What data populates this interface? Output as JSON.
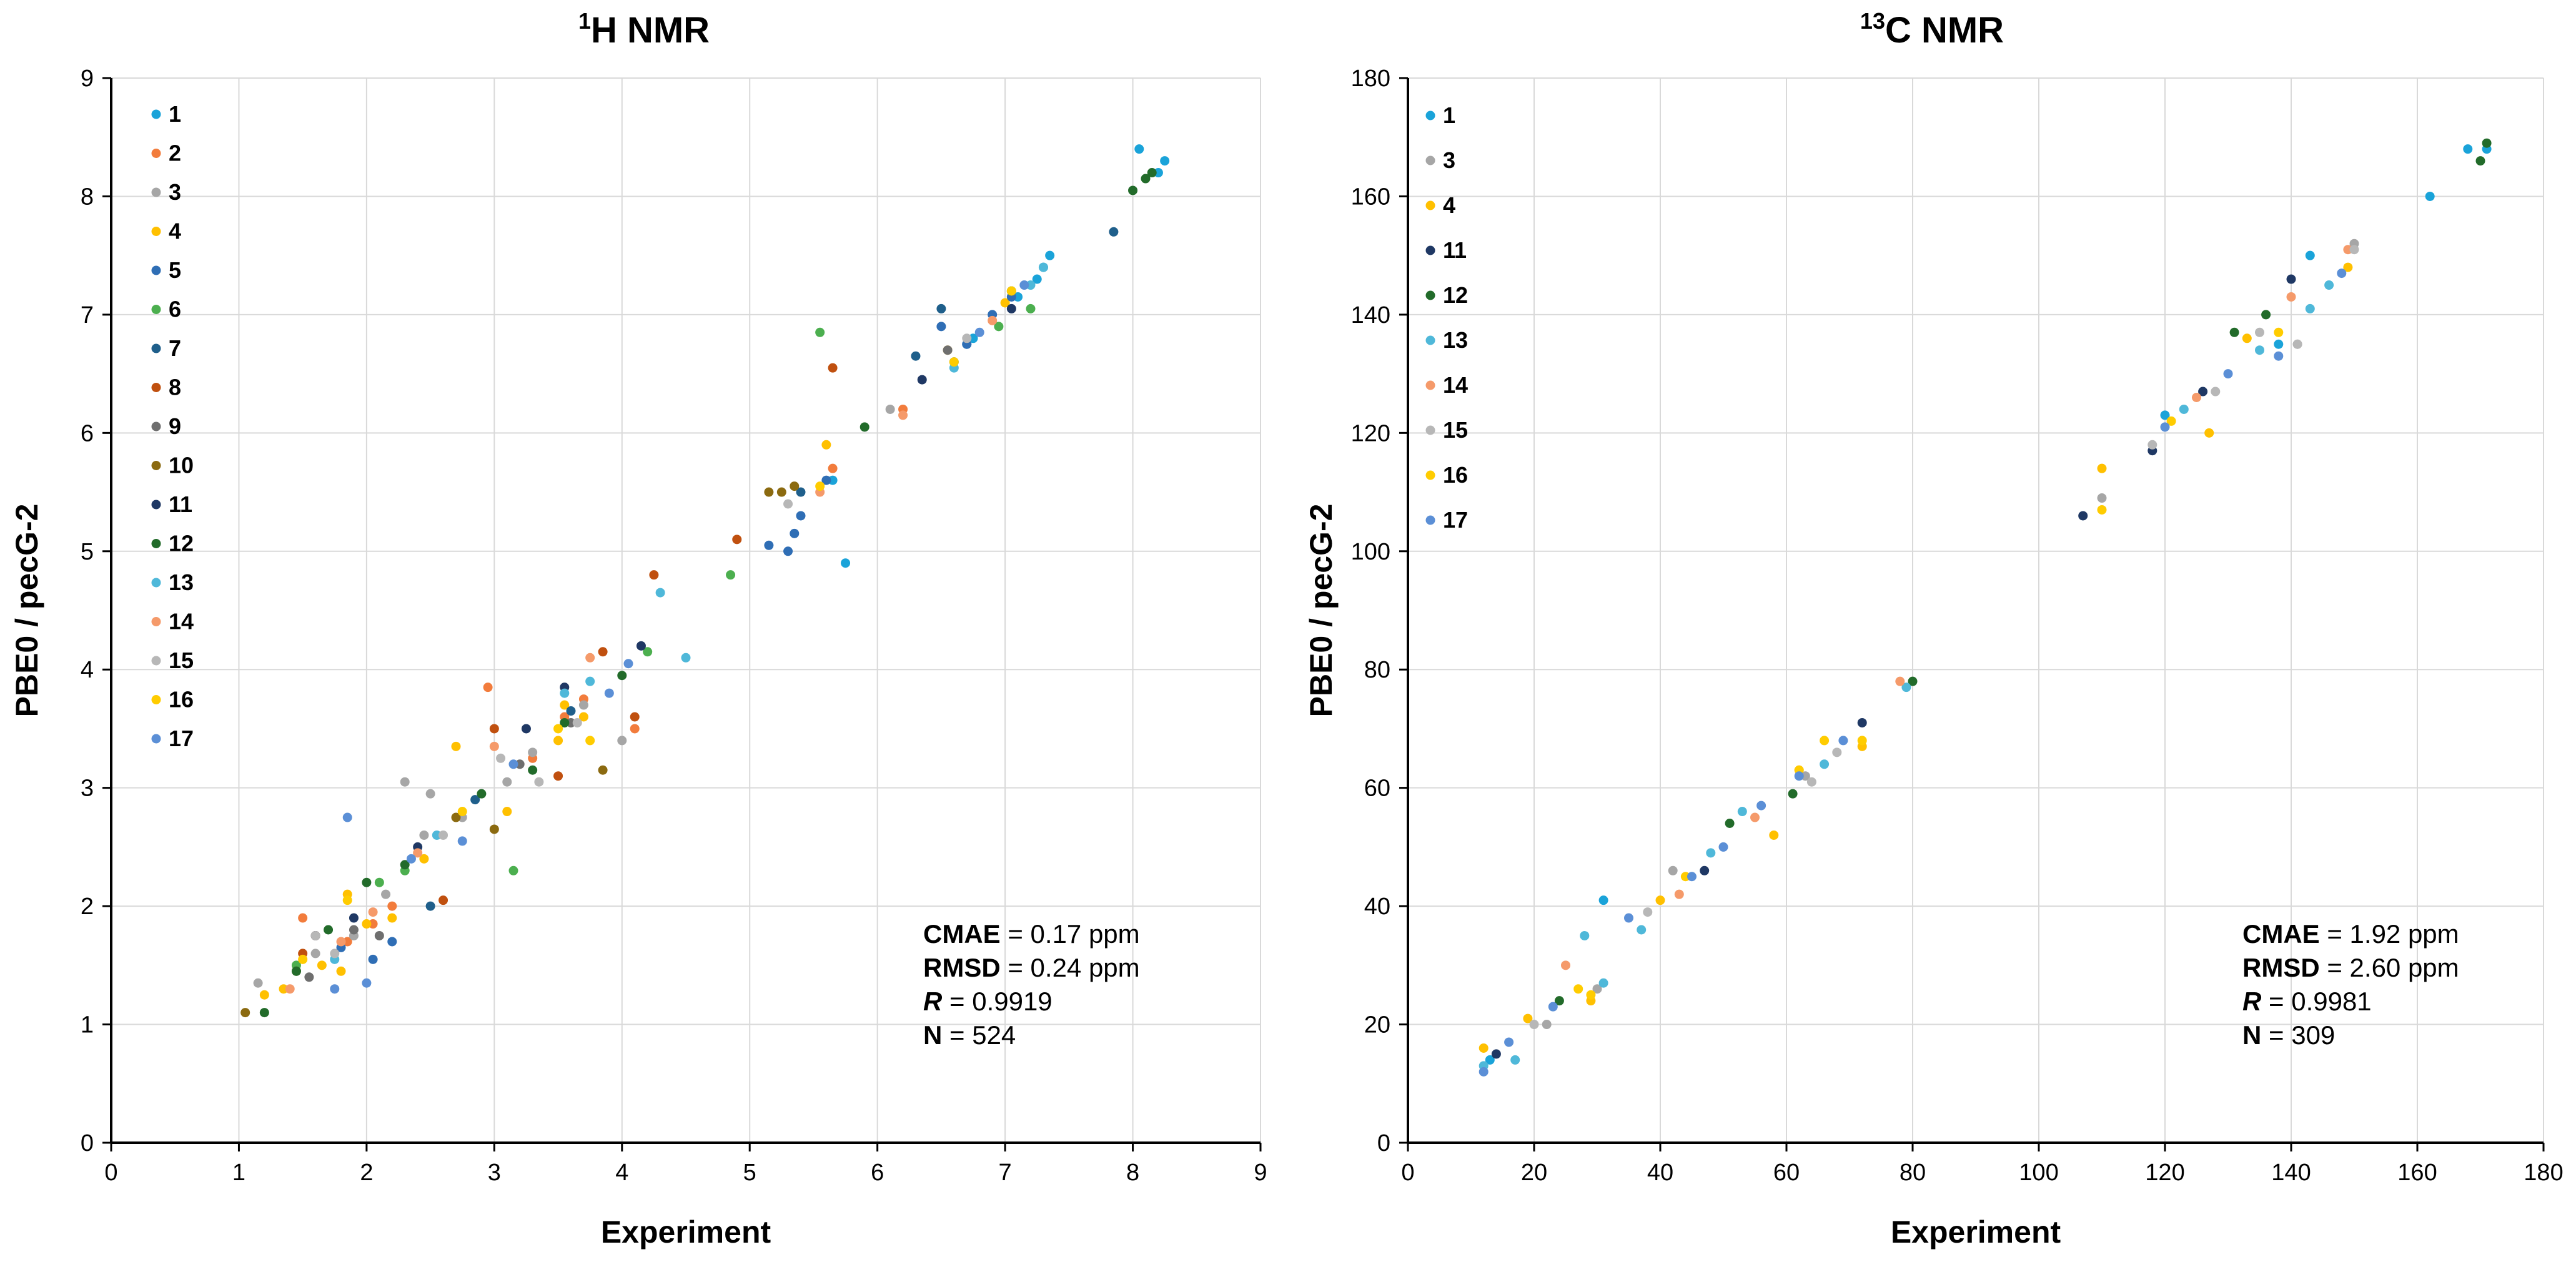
{
  "chart_data": [
    {
      "type": "scatter",
      "id": "h",
      "title_sup": "1",
      "title_main": "H NMR",
      "xlabel": "Experiment",
      "ylabel": "PBE0 / pecG-2",
      "xlim": [
        0,
        9
      ],
      "ylim": [
        0,
        9
      ],
      "xticks": [
        "0",
        "1",
        "2",
        "3",
        "4",
        "5",
        "6",
        "7",
        "8",
        "9"
      ],
      "yticks": [
        "0",
        "1",
        "2",
        "3",
        "4",
        "5",
        "6",
        "7",
        "8",
        "9"
      ],
      "stats": [
        {
          "label": "CMAE",
          "italic": false,
          "text": " = 0.17 ppm"
        },
        {
          "label": "RMSD",
          "italic": false,
          "text": " = 0.24 ppm"
        },
        {
          "label": "R",
          "italic": true,
          "text": " = 0.9919"
        },
        {
          "label": "N",
          "italic": false,
          "text": " = 524"
        }
      ],
      "series": [
        {
          "name": "1",
          "color": "#1aa3d9",
          "x": [
            8.05,
            8.2,
            8.25,
            7.3,
            7.35,
            7.25,
            7.1,
            6.75,
            6.7,
            6.6,
            5.65,
            5.75
          ],
          "y": [
            8.4,
            8.2,
            8.3,
            7.4,
            7.5,
            7.3,
            7.15,
            6.8,
            6.75,
            6.6,
            5.6,
            4.9
          ]
        },
        {
          "name": "2",
          "color": "#f27c3c",
          "x": [
            2.95,
            6.2,
            5.65,
            1.5,
            1.6,
            1.85,
            2.05,
            2.2,
            3.3,
            3.55,
            3.7,
            4.1
          ],
          "y": [
            3.85,
            6.2,
            5.7,
            1.9,
            1.75,
            1.7,
            1.85,
            2.0,
            3.25,
            3.6,
            3.75,
            3.5
          ]
        },
        {
          "name": "3",
          "color": "#a6a6a6",
          "x": [
            1.15,
            1.6,
            1.9,
            2.15,
            2.3,
            2.45,
            2.5,
            2.75,
            3.1,
            3.3,
            3.7,
            4.0,
            6.1,
            6.6
          ],
          "y": [
            1.35,
            1.6,
            1.75,
            2.1,
            3.05,
            2.6,
            2.95,
            2.75,
            3.05,
            3.3,
            3.7,
            3.4,
            6.2,
            6.6
          ]
        },
        {
          "name": "4",
          "color": "#ffc000",
          "x": [
            1.2,
            1.35,
            1.65,
            1.8,
            1.85,
            2.0,
            2.2,
            2.45,
            2.7,
            3.1,
            3.5,
            3.55,
            3.7,
            5.6,
            6.55,
            7.0
          ],
          "y": [
            1.25,
            1.3,
            1.5,
            1.45,
            2.1,
            1.85,
            1.9,
            2.4,
            3.35,
            2.8,
            3.4,
            3.7,
            3.6,
            5.9,
            6.7,
            7.1
          ]
        },
        {
          "name": "5",
          "color": "#2f6eb5",
          "x": [
            5.15,
            5.3,
            5.35,
            5.4,
            5.6,
            6.5,
            6.7,
            6.9,
            7.05,
            2.2,
            2.05,
            1.8
          ],
          "y": [
            5.05,
            5.0,
            5.15,
            5.3,
            5.6,
            6.9,
            6.75,
            7.0,
            7.15,
            1.7,
            1.55,
            1.65
          ]
        },
        {
          "name": "6",
          "color": "#4caf4f",
          "x": [
            5.55,
            4.85,
            4.2,
            7.2,
            6.95,
            3.15,
            2.1,
            2.3,
            1.45
          ],
          "y": [
            6.85,
            4.8,
            4.15,
            7.05,
            6.9,
            2.3,
            2.2,
            2.3,
            1.5
          ]
        },
        {
          "name": "7",
          "color": "#1f5f8b",
          "x": [
            6.5,
            6.3,
            7.85,
            2.5,
            2.85,
            3.6,
            5.4
          ],
          "y": [
            7.05,
            6.65,
            7.7,
            2.0,
            2.9,
            3.65,
            5.5
          ]
        },
        {
          "name": "8",
          "color": "#c0500f",
          "x": [
            5.65,
            4.25,
            4.9,
            3.0,
            3.85,
            2.6,
            4.1,
            3.5,
            1.5
          ],
          "y": [
            6.55,
            4.8,
            5.1,
            3.5,
            4.15,
            2.05,
            3.6,
            3.1,
            1.6
          ]
        },
        {
          "name": "9",
          "color": "#6f6f6f",
          "x": [
            1.55,
            1.9,
            2.1,
            3.2,
            3.6,
            6.55
          ],
          "y": [
            1.4,
            1.8,
            1.75,
            3.2,
            3.55,
            6.7
          ]
        },
        {
          "name": "10",
          "color": "#8b6a10",
          "x": [
            1.05,
            1.45,
            2.7,
            3.85,
            5.15,
            5.35,
            5.25,
            3.0
          ],
          "y": [
            1.1,
            1.45,
            2.75,
            3.15,
            5.5,
            5.55,
            5.5,
            2.65
          ]
        },
        {
          "name": "11",
          "color": "#1f3864",
          "x": [
            1.6,
            1.9,
            2.4,
            3.25,
            3.55,
            4.15,
            6.35,
            7.05
          ],
          "y": [
            1.75,
            1.9,
            2.5,
            3.5,
            3.85,
            4.2,
            6.45,
            7.05
          ]
        },
        {
          "name": "12",
          "color": "#226b2a",
          "x": [
            1.2,
            1.45,
            1.7,
            2.0,
            2.3,
            2.9,
            3.3,
            3.55,
            4.0,
            5.9,
            7.05,
            8.0,
            8.1,
            8.15
          ],
          "y": [
            1.1,
            1.45,
            1.8,
            2.2,
            2.35,
            2.95,
            3.15,
            3.55,
            3.95,
            6.05,
            7.2,
            8.05,
            8.15,
            8.2
          ]
        },
        {
          "name": "13",
          "color": "#4fb8d9",
          "x": [
            1.75,
            2.55,
            3.55,
            3.75,
            4.3,
            4.5,
            6.6,
            7.2,
            7.3
          ],
          "y": [
            1.55,
            2.6,
            3.8,
            3.9,
            4.65,
            4.1,
            6.55,
            7.25,
            7.4
          ]
        },
        {
          "name": "14",
          "color": "#f59a6a",
          "x": [
            1.4,
            1.8,
            2.05,
            2.4,
            3.0,
            3.75,
            5.55,
            6.2,
            6.9
          ],
          "y": [
            1.3,
            1.7,
            1.95,
            2.45,
            3.35,
            4.1,
            5.5,
            6.15,
            6.95
          ]
        },
        {
          "name": "15",
          "color": "#b7b7b7",
          "x": [
            1.6,
            1.75,
            2.6,
            3.05,
            3.35,
            3.65,
            5.3,
            6.7
          ],
          "y": [
            1.75,
            1.6,
            2.6,
            3.25,
            3.05,
            3.55,
            5.4,
            6.8
          ]
        },
        {
          "name": "16",
          "color": "#ffcc00",
          "x": [
            1.5,
            1.85,
            2.75,
            3.5,
            3.75,
            5.55,
            6.6,
            7.05
          ],
          "y": [
            1.55,
            2.05,
            2.8,
            3.5,
            3.4,
            5.55,
            6.6,
            7.2
          ]
        },
        {
          "name": "17",
          "color": "#5b8fd6",
          "x": [
            1.75,
            1.85,
            2.0,
            2.35,
            2.75,
            3.15,
            3.9,
            4.05,
            6.8,
            7.15
          ],
          "y": [
            1.3,
            2.75,
            1.35,
            2.4,
            2.55,
            3.2,
            3.8,
            4.05,
            6.85,
            7.25
          ]
        }
      ]
    },
    {
      "type": "scatter",
      "id": "c",
      "title_sup": "13",
      "title_main": "C NMR",
      "xlabel": "Experiment",
      "ylabel": "PBE0 / pecG-2",
      "xlim": [
        0,
        180
      ],
      "ylim": [
        0,
        180
      ],
      "xticks": [
        "0",
        "20",
        "40",
        "60",
        "80",
        "100",
        "120",
        "140",
        "160",
        "180"
      ],
      "yticks": [
        "0",
        "20",
        "40",
        "60",
        "80",
        "100",
        "120",
        "140",
        "160",
        "180"
      ],
      "stats": [
        {
          "label": "CMAE",
          "italic": false,
          "text": " = 1.92 ppm"
        },
        {
          "label": "RMSD",
          "italic": false,
          "text": " = 2.60 ppm"
        },
        {
          "label": "R",
          "italic": true,
          "text": " = 0.9981"
        },
        {
          "label": "N",
          "italic": false,
          "text": " = 309"
        }
      ],
      "series": [
        {
          "name": "1",
          "color": "#1aa3d9",
          "x": [
            162,
            168,
            171,
            31,
            13,
            143,
            120,
            138
          ],
          "y": [
            160,
            168,
            168,
            41,
            14,
            150,
            123,
            135
          ]
        },
        {
          "name": "3",
          "color": "#a6a6a6",
          "x": [
            42,
            30,
            63,
            110,
            141,
            150,
            22
          ],
          "y": [
            46,
            26,
            62,
            109,
            135,
            152,
            20
          ]
        },
        {
          "name": "4",
          "color": "#ffc000",
          "x": [
            110,
            12,
            19,
            58,
            72,
            127,
            133,
            149,
            29,
            40
          ],
          "y": [
            114,
            16,
            21,
            52,
            67,
            120,
            136,
            148,
            24,
            41
          ]
        },
        {
          "name": "11",
          "color": "#1f3864",
          "x": [
            107,
            72,
            118,
            126,
            140,
            47,
            14
          ],
          "y": [
            106,
            71,
            117,
            127,
            146,
            46,
            15
          ]
        },
        {
          "name": "12",
          "color": "#226b2a",
          "x": [
            80,
            170,
            171,
            136,
            61,
            24,
            51,
            131
          ],
          "y": [
            78,
            166,
            169,
            140,
            59,
            24,
            54,
            137
          ]
        },
        {
          "name": "13",
          "color": "#4fb8d9",
          "x": [
            37,
            12,
            17,
            28,
            31,
            48,
            53,
            66,
            79,
            123,
            135,
            143,
            146
          ],
          "y": [
            36,
            13,
            14,
            35,
            27,
            49,
            56,
            64,
            77,
            124,
            134,
            141,
            145
          ]
        },
        {
          "name": "14",
          "color": "#f59a6a",
          "x": [
            25,
            43,
            55,
            78,
            62,
            125,
            140,
            149
          ],
          "y": [
            30,
            42,
            55,
            78,
            63,
            126,
            143,
            151
          ]
        },
        {
          "name": "15",
          "color": "#b7b7b7",
          "x": [
            20,
            38,
            64,
            68,
            118,
            128,
            135,
            141,
            150
          ],
          "y": [
            20,
            39,
            61,
            66,
            118,
            127,
            137,
            135,
            151
          ]
        },
        {
          "name": "16",
          "color": "#ffcc00",
          "x": [
            110,
            29,
            27,
            44,
            62,
            66,
            72,
            121,
            138
          ],
          "y": [
            107,
            25,
            26,
            45,
            63,
            68,
            68,
            122,
            137
          ]
        },
        {
          "name": "17",
          "color": "#5b8fd6",
          "x": [
            12,
            16,
            23,
            35,
            45,
            50,
            56,
            62,
            69,
            120,
            130,
            138,
            148
          ],
          "y": [
            12,
            17,
            23,
            38,
            45,
            50,
            57,
            62,
            68,
            121,
            130,
            133,
            147
          ]
        }
      ]
    }
  ]
}
